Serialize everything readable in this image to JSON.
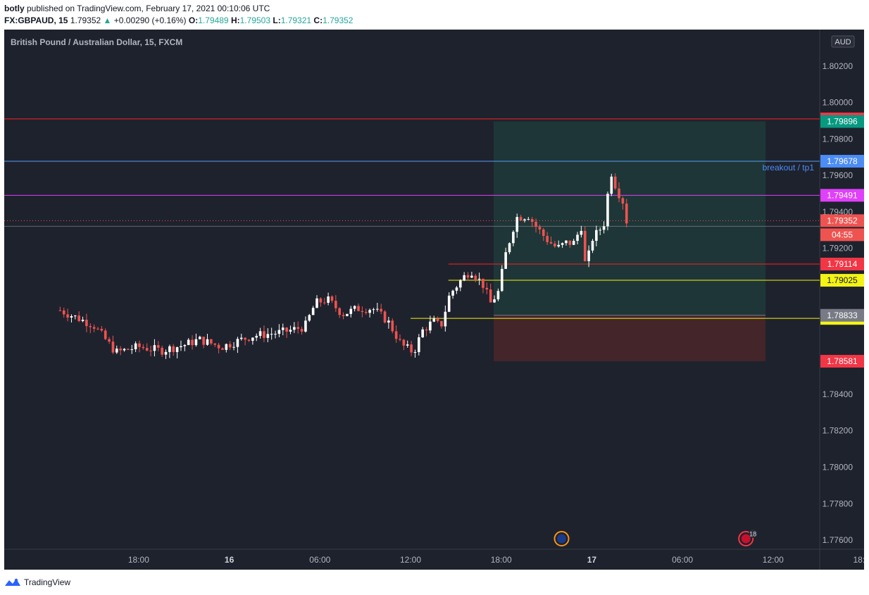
{
  "header": {
    "author": "botly",
    "published_text": " published on TradingView.com, February 17, 2021 00:10:06 UTC",
    "symbol": "FX:GBPAUD, 15",
    "price": "1.79352",
    "change": "+0.00290 (+0.16%)",
    "o_label": "O:",
    "o": "1.79489",
    "h_label": "H:",
    "h": "1.79503",
    "l_label": "L:",
    "l": "1.79321",
    "c_label": "C:",
    "c": "1.79352"
  },
  "chart_title": "British Pound / Australian Dollar, 15, FXCM",
  "currency": "AUD",
  "countdown": "04:55",
  "footer": {
    "brand": "TradingView"
  },
  "colors": {
    "background": "#1e222d",
    "up": "#ffffff",
    "down": "#ef5350",
    "grid_text": "#b2b5be",
    "profit_zone": "#1f3a3a",
    "loss_zone": "#4a262a"
  },
  "chart_data": {
    "type": "candlestick",
    "title": "British Pound / Australian Dollar, 15, FXCM",
    "ylim": [
      1.7755,
      1.804
    ],
    "y_ticks": [
      "1.80200",
      "1.80000",
      "1.79800",
      "1.79600",
      "1.79400",
      "1.79200",
      "1.78400",
      "1.78200",
      "1.78000",
      "1.77800",
      "1.77600"
    ],
    "x_ticks": [
      {
        "label": "18:00",
        "hour": 18
      },
      {
        "label": "16",
        "hour": 24,
        "bold": true
      },
      {
        "label": "06:00",
        "hour": 30
      },
      {
        "label": "12:00",
        "hour": 36
      },
      {
        "label": "18:00",
        "hour": 42
      },
      {
        "label": "17",
        "hour": 48,
        "bold": true
      },
      {
        "label": "06:00",
        "hour": 54
      },
      {
        "label": "12:00",
        "hour": 60
      },
      {
        "label": "18:00",
        "hour": 66
      }
    ],
    "candle_path": [
      [
        12.8,
        1.7886
      ],
      [
        15.0,
        1.7878
      ],
      [
        16.5,
        1.7863
      ],
      [
        18.0,
        1.7866
      ],
      [
        19.5,
        1.7864
      ],
      [
        21.0,
        1.7867
      ],
      [
        22.0,
        1.787
      ],
      [
        23.5,
        1.7866
      ],
      [
        25.5,
        1.7872
      ],
      [
        27.5,
        1.7874
      ],
      [
        29.0,
        1.7877
      ],
      [
        29.7,
        1.789
      ],
      [
        30.5,
        1.7892
      ],
      [
        31.5,
        1.7884
      ],
      [
        32.5,
        1.7887
      ],
      [
        33.5,
        1.7887
      ],
      [
        34.5,
        1.788
      ],
      [
        35.4,
        1.7867
      ],
      [
        36.2,
        1.7863
      ],
      [
        36.8,
        1.7875
      ],
      [
        37.5,
        1.788
      ],
      [
        38.0,
        1.7877
      ],
      [
        38.6,
        1.7895
      ],
      [
        39.6,
        1.7905
      ],
      [
        40.0,
        1.7908
      ],
      [
        40.8,
        1.79
      ],
      [
        41.3,
        1.789
      ],
      [
        41.8,
        1.7896
      ],
      [
        42.3,
        1.7917
      ],
      [
        43.0,
        1.7937
      ],
      [
        43.8,
        1.7938
      ],
      [
        44.3,
        1.7932
      ],
      [
        45.0,
        1.7925
      ],
      [
        45.7,
        1.792
      ],
      [
        46.3,
        1.7923
      ],
      [
        46.8,
        1.7923
      ],
      [
        47.3,
        1.7932
      ],
      [
        47.6,
        1.7908
      ],
      [
        48.0,
        1.7925
      ],
      [
        48.5,
        1.793
      ],
      [
        48.9,
        1.7935
      ],
      [
        49.2,
        1.7964
      ],
      [
        49.7,
        1.7951
      ],
      [
        50.0,
        1.7948
      ],
      [
        50.3,
        1.7935
      ]
    ],
    "horizontal_levels": [
      {
        "price": 1.7991,
        "label": "1.79910",
        "line": "#ff2020",
        "tag": "#f23645",
        "text": "#ffffff",
        "x_start": "left"
      },
      {
        "price": 1.79678,
        "label": "1.79678",
        "line": "#5b9cf6",
        "tag": "#4c8cf5",
        "text": "#ffffff",
        "x_start": "left",
        "annotation": "breakout / tp1"
      },
      {
        "price": 1.79491,
        "label": "1.79491",
        "line": "#e040fb",
        "tag": "#e040fb",
        "text": "#ffffff",
        "x_start": "left"
      },
      {
        "price": 1.79114,
        "label": "1.79114",
        "line": "#ff2020",
        "tag": "#f23645",
        "text": "#ffffff",
        "x_start": "mid"
      },
      {
        "price": 1.79025,
        "label": "1.79025",
        "line": "#f3f315",
        "tag": "#f3f315",
        "text": "#131722",
        "x_start": "mid"
      },
      {
        "price": 1.78816,
        "label": "1.78816",
        "line": "#f3f315",
        "tag": "#f3f315",
        "text": "#131722",
        "x_start": "mid2"
      }
    ],
    "current_price": {
      "price": 1.79352,
      "label": "1.79352",
      "tag": "#ef5350"
    },
    "position": {
      "entry": 1.78833,
      "entry_label": "1.78833",
      "target": 1.79896,
      "target_label": "1.79896",
      "stop": 1.78581,
      "stop_label": "1.78581",
      "start_hour": 41.5,
      "end_hour": 59.5
    },
    "events": [
      {
        "hour": 46.0,
        "flag": "AU"
      },
      {
        "hour": 58.2,
        "flag": "GB",
        "badge": "18"
      }
    ]
  }
}
